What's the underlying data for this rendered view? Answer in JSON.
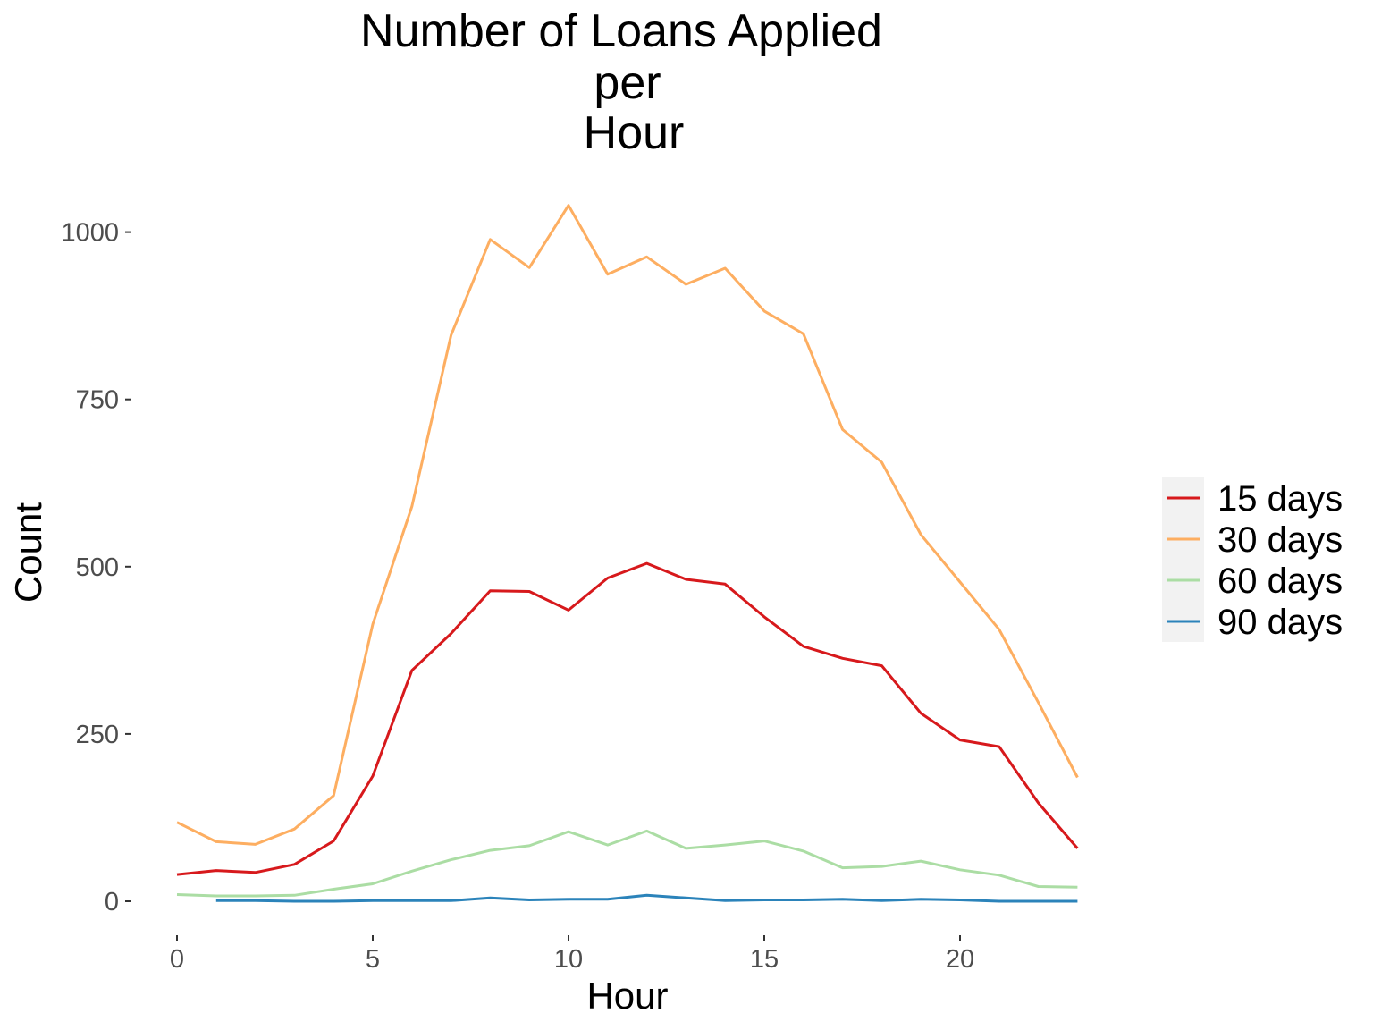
{
  "chart_data": {
    "type": "line",
    "title_lines": [
      "Number of Loans Applied",
      "per",
      "Hour"
    ],
    "xlabel": "Hour",
    "ylabel": "Count",
    "xlim": [
      0,
      23
    ],
    "ylim": [
      0,
      1040
    ],
    "x_ticks": [
      {
        "value": 0,
        "label": "0"
      },
      {
        "value": 5,
        "label": "5"
      },
      {
        "value": 10,
        "label": "10"
      },
      {
        "value": 15,
        "label": "15"
      },
      {
        "value": 20,
        "label": "20"
      }
    ],
    "y_ticks": [
      {
        "value": 0,
        "label": "0"
      },
      {
        "value": 250,
        "label": "250"
      },
      {
        "value": 500,
        "label": "500"
      },
      {
        "value": 750,
        "label": "750"
      },
      {
        "value": 1000,
        "label": "1000"
      }
    ],
    "grid": false,
    "legend_position": "right",
    "series": [
      {
        "name": "15 days",
        "color": "#d7191c",
        "x": [
          0,
          1,
          2,
          3,
          4,
          5,
          6,
          7,
          8,
          9,
          10,
          11,
          12,
          13,
          14,
          15,
          16,
          17,
          18,
          19,
          20,
          21,
          22,
          23
        ],
        "values": [
          40,
          46,
          43,
          55,
          90,
          187,
          345,
          400,
          464,
          463,
          435,
          483,
          505,
          481,
          474,
          425,
          381,
          363,
          352,
          281,
          241,
          231,
          147,
          79
        ]
      },
      {
        "name": "30 days",
        "color": "#fdae61",
        "x": [
          0,
          1,
          2,
          3,
          4,
          5,
          6,
          7,
          8,
          9,
          10,
          11,
          12,
          13,
          14,
          15,
          16,
          17,
          18,
          19,
          20,
          21,
          22,
          23
        ],
        "values": [
          118,
          89,
          85,
          108,
          158,
          414,
          590,
          846,
          989,
          947,
          1040,
          937,
          963,
          922,
          946,
          882,
          848,
          705,
          656,
          548,
          477,
          406,
          297,
          185
        ]
      },
      {
        "name": "60 days",
        "color": "#abdda4",
        "x": [
          0,
          1,
          2,
          3,
          4,
          5,
          6,
          7,
          8,
          9,
          10,
          11,
          12,
          13,
          14,
          15,
          16,
          17,
          18,
          19,
          20,
          21,
          22,
          23
        ],
        "values": [
          10,
          8,
          8,
          9,
          18,
          26,
          45,
          62,
          76,
          83,
          104,
          84,
          105,
          79,
          84,
          90,
          75,
          50,
          52,
          60,
          47,
          39,
          22,
          21
        ]
      },
      {
        "name": "90 days",
        "color": "#2b83ba",
        "x": [
          1,
          2,
          3,
          4,
          5,
          6,
          7,
          8,
          9,
          10,
          11,
          12,
          13,
          14,
          15,
          16,
          17,
          18,
          19,
          20,
          21,
          22,
          23
        ],
        "values": [
          1,
          1,
          0,
          0,
          1,
          1,
          1,
          5,
          2,
          3,
          3,
          9,
          5,
          1,
          2,
          2,
          3,
          1,
          3,
          2,
          0,
          0,
          0
        ]
      }
    ]
  }
}
